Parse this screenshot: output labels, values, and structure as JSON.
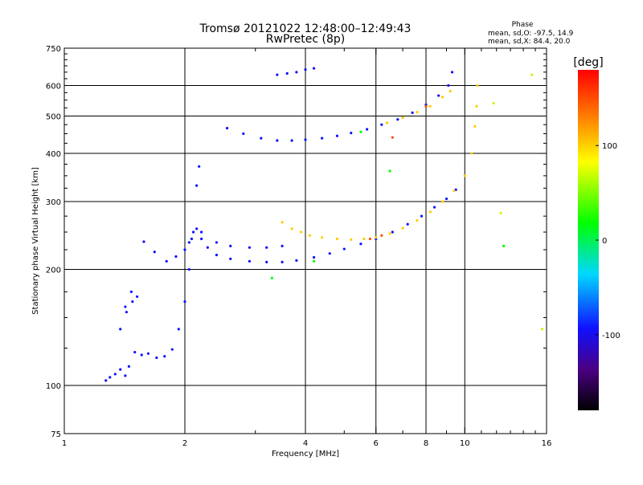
{
  "chart_data": {
    "type": "scatter",
    "title": "Tromsø 20121022 12:48:00–12:49:43",
    "subtitle": "RwPretec (8p)",
    "xlabel": "Frequency [MHz]",
    "ylabel": "Stationary phase Virtual Height [km]",
    "x_scale": "log",
    "y_scale": "log",
    "xlim": [
      1,
      16
    ],
    "ylim": [
      75,
      750
    ],
    "x_ticks": [
      1,
      2,
      4,
      6,
      8,
      10,
      16
    ],
    "x_tick_labels": [
      "1",
      "2",
      "4",
      "6",
      "8",
      "10",
      "16"
    ],
    "y_ticks": [
      75,
      100,
      200,
      300,
      400,
      500,
      600,
      750
    ],
    "y_tick_labels": [
      "75",
      "100",
      "200",
      "300",
      "400",
      "500",
      "600",
      "750"
    ],
    "grid_x": [
      2,
      4,
      6,
      8,
      10
    ],
    "grid_y": [
      100,
      200,
      300,
      400,
      500,
      600
    ],
    "phase_info": {
      "heading": "Phase",
      "line1": "mean, sd,O:  -97.5, 14.9",
      "line2": "mean, sd,X:  84.4, 20.0"
    },
    "colorbar": {
      "label": "[deg]",
      "range": [
        -180,
        180
      ],
      "ticks": [
        100,
        0,
        -100
      ],
      "tick_labels": [
        "100",
        "0",
        "-100"
      ]
    },
    "traces": [
      {
        "phase": -100,
        "points": [
          [
            1.27,
            103
          ],
          [
            1.3,
            105
          ],
          [
            1.34,
            107
          ],
          [
            1.38,
            110
          ],
          [
            1.42,
            106
          ],
          [
            1.45,
            112
          ]
        ]
      },
      {
        "phase": -100,
        "points": [
          [
            1.38,
            140
          ],
          [
            1.43,
            155
          ],
          [
            1.48,
            165
          ],
          [
            1.52,
            170
          ],
          [
            1.47,
            175
          ],
          [
            1.42,
            160
          ]
        ]
      },
      {
        "phase": -100,
        "points": [
          [
            1.5,
            122
          ],
          [
            1.56,
            120
          ],
          [
            1.62,
            121
          ],
          [
            1.7,
            118
          ],
          [
            1.78,
            119
          ],
          [
            1.86,
            124
          ],
          [
            1.93,
            140
          ],
          [
            2.0,
            165
          ],
          [
            2.05,
            200
          ],
          [
            2.1,
            250
          ],
          [
            2.14,
            330
          ],
          [
            2.17,
            370
          ]
        ]
      },
      {
        "phase": -100,
        "points": [
          [
            1.58,
            236
          ],
          [
            1.68,
            222
          ],
          [
            1.8,
            210
          ],
          [
            1.9,
            216
          ],
          [
            2.0,
            225
          ],
          [
            2.08,
            240
          ],
          [
            2.14,
            255
          ],
          [
            2.2,
            240
          ],
          [
            2.28,
            228
          ],
          [
            2.4,
            218
          ],
          [
            2.6,
            213
          ],
          [
            2.9,
            210
          ],
          [
            3.2,
            209
          ],
          [
            3.5,
            209
          ],
          [
            3.8,
            211
          ],
          [
            4.2,
            215
          ],
          [
            4.6,
            220
          ],
          [
            5.0,
            226
          ],
          [
            5.5,
            233
          ],
          [
            6.0,
            240
          ],
          [
            6.6,
            250
          ],
          [
            7.2,
            262
          ],
          [
            7.8,
            275
          ],
          [
            8.4,
            290
          ],
          [
            9.0,
            305
          ],
          [
            9.5,
            322
          ]
        ]
      },
      {
        "phase": -100,
        "points": [
          [
            2.05,
            235
          ],
          [
            2.2,
            250
          ],
          [
            2.4,
            235
          ],
          [
            2.6,
            230
          ],
          [
            2.9,
            228
          ],
          [
            3.2,
            228
          ],
          [
            3.5,
            230
          ]
        ]
      },
      {
        "phase": -100,
        "points": [
          [
            2.55,
            465
          ],
          [
            2.8,
            450
          ],
          [
            3.1,
            438
          ],
          [
            3.4,
            432
          ],
          [
            3.7,
            432
          ],
          [
            4.0,
            434
          ],
          [
            4.4,
            438
          ],
          [
            4.8,
            444
          ],
          [
            5.2,
            452
          ],
          [
            5.7,
            462
          ],
          [
            6.2,
            475
          ],
          [
            6.8,
            490
          ],
          [
            7.4,
            510
          ],
          [
            8.0,
            535
          ],
          [
            8.6,
            565
          ],
          [
            9.1,
            600
          ],
          [
            9.3,
            650
          ]
        ]
      },
      {
        "phase": -100,
        "points": [
          [
            3.4,
            640
          ],
          [
            3.6,
            645
          ],
          [
            3.8,
            650
          ],
          [
            4.0,
            660
          ],
          [
            4.2,
            665
          ]
        ]
      },
      {
        "phase": 100,
        "points": [
          [
            3.5,
            265
          ],
          [
            3.7,
            255
          ],
          [
            3.9,
            250
          ],
          [
            4.1,
            245
          ],
          [
            4.4,
            242
          ],
          [
            4.8,
            240
          ],
          [
            5.2,
            239
          ],
          [
            5.6,
            240
          ],
          [
            6.0,
            242
          ],
          [
            6.5,
            248
          ],
          [
            7.0,
            256
          ],
          [
            7.6,
            268
          ],
          [
            8.2,
            282
          ],
          [
            8.8,
            300
          ],
          [
            9.4,
            320
          ],
          [
            10.0,
            350
          ],
          [
            10.4,
            400
          ],
          [
            10.6,
            470
          ],
          [
            10.7,
            530
          ],
          [
            10.75,
            600
          ]
        ]
      },
      {
        "phase": 100,
        "points": [
          [
            6.4,
            480
          ],
          [
            7.0,
            495
          ],
          [
            7.6,
            512
          ],
          [
            8.2,
            530
          ],
          [
            8.8,
            560
          ],
          [
            9.2,
            580
          ]
        ]
      },
      {
        "phase": 150,
        "points": [
          [
            6.6,
            440
          ],
          [
            8.0,
            530
          ],
          [
            5.8,
            240
          ],
          [
            6.2,
            245
          ]
        ]
      },
      {
        "phase": 0,
        "points": [
          [
            3.3,
            190
          ],
          [
            4.2,
            210
          ],
          [
            5.5,
            455
          ],
          [
            6.5,
            360
          ],
          [
            12.5,
            230
          ]
        ]
      },
      {
        "phase": 60,
        "points": [
          [
            12.3,
            280
          ],
          [
            11.8,
            540
          ],
          [
            14.7,
            640
          ],
          [
            15.6,
            140
          ]
        ]
      }
    ]
  }
}
